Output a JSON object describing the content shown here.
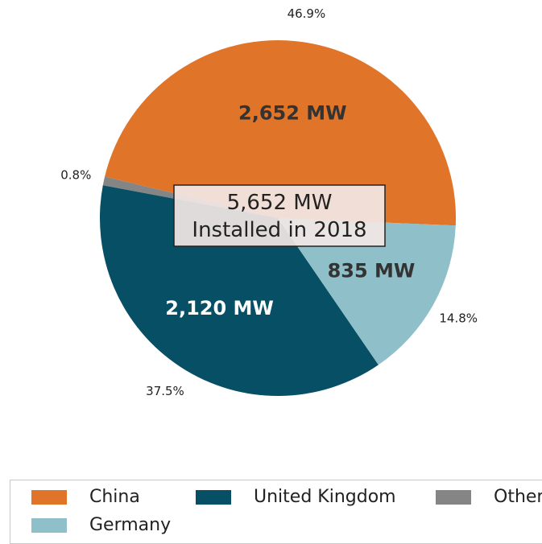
{
  "chart_data": {
    "type": "pie",
    "title": "",
    "center_label": [
      "5,652 MW",
      "Installed in 2018"
    ],
    "slices": [
      {
        "name": "China",
        "value": 2652,
        "value_label": "2,652 MW",
        "percent_label": "46.9%",
        "color": "#e07428",
        "text_color": "#333333"
      },
      {
        "name": "Other",
        "value": 45,
        "value_label": "",
        "percent_label": "0.8%",
        "color": "#858585",
        "text_color": "#333333"
      },
      {
        "name": "United Kingdom",
        "value": 2120,
        "value_label": "2,120 MW",
        "percent_label": "37.5%",
        "color": "#064f65",
        "text_color": "#ffffff"
      },
      {
        "name": "Germany",
        "value": 835,
        "value_label": "835 MW",
        "percent_label": "14.8%",
        "color": "#8fbfc8",
        "text_color": "#333333"
      }
    ],
    "legend": {
      "placement": "bottom",
      "entries": [
        {
          "label": "China",
          "color": "#e07428"
        },
        {
          "label": "United Kingdom",
          "color": "#064f65"
        },
        {
          "label": "Other",
          "color": "#858585"
        },
        {
          "label": "Germany",
          "color": "#8fbfc8"
        }
      ]
    }
  }
}
